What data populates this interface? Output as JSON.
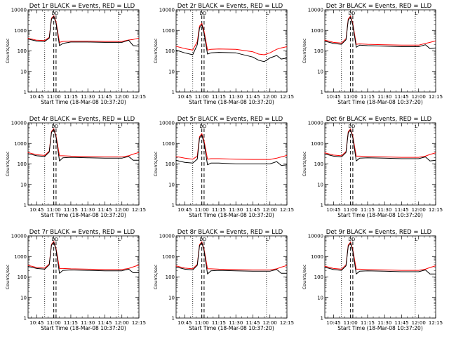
{
  "chart_data": {
    "type": "line",
    "layout": "3x3 grid",
    "y_scale": "log",
    "ylim": [
      1,
      10000
    ],
    "y_ticks": [
      "1",
      "10",
      "100",
      "1000",
      "10000"
    ],
    "x_range": [
      "10:37:20",
      "12:15"
    ],
    "x_ticks": [
      "10:45",
      "11:00",
      "11:15",
      "11:30",
      "11:45",
      "12:00",
      "12:15"
    ],
    "ylabel": "Counts/sec",
    "xlabel": "Start Time (18-Mar-08 10:37:20)",
    "series_colors": {
      "events": "#000000",
      "lld": "#ff0000"
    },
    "marker_labels": [
      "D",
      "D",
      "L"
    ],
    "dotted_lines_at": [
      "10:52",
      "11:57"
    ],
    "dashed_lines_at": [
      "11:00",
      "11:02"
    ],
    "panels": [
      {
        "title": "Det 1r BLACK = Events, RED = LLD",
        "x": [
          "10:37",
          "10:45",
          "10:52",
          "10:56",
          "10:58",
          "11:00",
          "11:02",
          "11:05",
          "11:08",
          "11:15",
          "11:30",
          "11:45",
          "12:00",
          "12:06",
          "12:10",
          "12:15"
        ],
        "series": [
          {
            "name": "BLACK = Events",
            "values": [
              380,
              300,
              290,
              420,
              3500,
              4800,
              2200,
              180,
              230,
              270,
              270,
              260,
              260,
              330,
              180,
              170
            ]
          },
          {
            "name": "RED = LLD",
            "values": [
              420,
              330,
              320,
              460,
              3900,
              5200,
              2600,
              260,
              290,
              300,
              300,
              290,
              290,
              340,
              360,
              420
            ]
          }
        ]
      },
      {
        "title": "Det 2r BLACK = Events, RED = LLD",
        "x": [
          "10:37",
          "10:45",
          "10:52",
          "10:56",
          "10:58",
          "11:00",
          "11:02",
          "11:05",
          "11:08",
          "11:15",
          "11:30",
          "11:45",
          "11:50",
          "11:55",
          "12:00",
          "12:06",
          "12:10",
          "12:15"
        ],
        "series": [
          {
            "name": "BLACK = Events",
            "values": [
              110,
              80,
              65,
              200,
              1300,
              1900,
              700,
              70,
              80,
              85,
              80,
              50,
              35,
              30,
              45,
              60,
              40,
              45
            ]
          },
          {
            "name": "RED = LLD",
            "values": [
              170,
              130,
              110,
              280,
              1600,
              2200,
              900,
              110,
              120,
              125,
              120,
              90,
              70,
              65,
              80,
              120,
              140,
              160
            ]
          }
        ]
      },
      {
        "title": "Det 3r BLACK = Events, RED = LLD",
        "x": [
          "10:37",
          "10:45",
          "10:52",
          "10:56",
          "10:58",
          "11:00",
          "11:02",
          "11:05",
          "11:08",
          "11:15",
          "11:30",
          "11:45",
          "12:00",
          "12:06",
          "12:10",
          "12:15"
        ],
        "series": [
          {
            "name": "BLACK = Events",
            "values": [
              300,
              230,
              210,
              350,
              3200,
              4500,
              1800,
              150,
              190,
              180,
              170,
              160,
              160,
              200,
              130,
              140
            ]
          },
          {
            "name": "RED = LLD",
            "values": [
              340,
              260,
              240,
              390,
              3600,
              5000,
              2100,
              210,
              220,
              210,
              200,
              190,
              190,
              230,
              260,
              310
            ]
          }
        ]
      },
      {
        "title": "Det 4r BLACK = Events, RED = LLD",
        "x": [
          "10:37",
          "10:45",
          "10:52",
          "10:56",
          "10:58",
          "11:00",
          "11:02",
          "11:05",
          "11:08",
          "11:15",
          "11:30",
          "11:45",
          "12:00",
          "12:06",
          "12:10",
          "12:15"
        ],
        "series": [
          {
            "name": "BLACK = Events",
            "values": [
              320,
              250,
              230,
              380,
              3400,
              4800,
              2000,
              140,
              200,
              210,
              200,
              190,
              190,
              230,
              150,
              150
            ]
          },
          {
            "name": "RED = LLD",
            "values": [
              360,
              280,
              260,
              420,
              3800,
              5300,
              2300,
              250,
              250,
              240,
              230,
              220,
              220,
              250,
              300,
              360
            ]
          }
        ]
      },
      {
        "title": "Det 5r BLACK = Events, RED = LLD",
        "x": [
          "10:37",
          "10:45",
          "10:52",
          "10:56",
          "10:58",
          "11:00",
          "11:02",
          "11:05",
          "11:08",
          "11:15",
          "11:30",
          "11:45",
          "12:00",
          "12:06",
          "12:10",
          "12:15"
        ],
        "series": [
          {
            "name": "BLACK = Events",
            "values": [
              150,
              120,
              110,
              170,
              1800,
              2600,
              1000,
              90,
              110,
              110,
              100,
              100,
              100,
              130,
              85,
              90
            ]
          },
          {
            "name": "RED = LLD",
            "values": [
              230,
              190,
              170,
              240,
              2100,
              3000,
              1300,
              170,
              180,
              180,
              170,
              165,
              165,
              190,
              220,
              260
            ]
          }
        ]
      },
      {
        "title": "Det 6r BLACK = Events, RED = LLD",
        "x": [
          "10:37",
          "10:45",
          "10:52",
          "10:56",
          "10:58",
          "11:00",
          "11:02",
          "11:05",
          "11:08",
          "11:15",
          "11:30",
          "11:45",
          "12:00",
          "12:06",
          "12:10",
          "12:15"
        ],
        "series": [
          {
            "name": "BLACK = Events",
            "values": [
              310,
              240,
              220,
              360,
              3300,
              4600,
              1900,
              140,
              190,
              200,
              190,
              180,
              180,
              220,
              140,
              150
            ]
          },
          {
            "name": "RED = LLD",
            "values": [
              350,
              270,
              250,
              400,
              3700,
              5100,
              2200,
              240,
              240,
              230,
              220,
              210,
              210,
              240,
              290,
              350
            ]
          }
        ]
      },
      {
        "title": "Det 7r BLACK = Events, RED = LLD",
        "x": [
          "10:37",
          "10:45",
          "10:52",
          "10:56",
          "10:58",
          "11:00",
          "11:02",
          "11:05",
          "11:08",
          "11:15",
          "11:30",
          "11:45",
          "12:00",
          "12:06",
          "12:10",
          "12:15"
        ],
        "series": [
          {
            "name": "BLACK = Events",
            "values": [
              330,
              260,
              240,
              390,
              3500,
              4900,
              2100,
              150,
              210,
              220,
              210,
              200,
              200,
              240,
              160,
              160
            ]
          },
          {
            "name": "RED = LLD",
            "values": [
              370,
              290,
              270,
              430,
              3900,
              5400,
              2400,
              260,
              260,
              250,
              240,
              230,
              230,
              260,
              310,
              380
            ]
          }
        ]
      },
      {
        "title": "Det 8r BLACK = Events, RED = LLD",
        "x": [
          "10:37",
          "10:45",
          "10:52",
          "10:56",
          "10:58",
          "11:00",
          "11:02",
          "11:05",
          "11:08",
          "11:15",
          "11:30",
          "11:45",
          "12:00",
          "12:06",
          "12:10",
          "12:15"
        ],
        "series": [
          {
            "name": "BLACK = Events",
            "values": [
              310,
              240,
              220,
              370,
              3300,
              4700,
              1900,
              140,
              200,
              210,
              200,
              190,
              190,
              230,
              150,
              150
            ]
          },
          {
            "name": "RED = LLD",
            "values": [
              350,
              270,
              250,
              410,
              3700,
              5200,
              2200,
              250,
              250,
              240,
              230,
              220,
              220,
              250,
              300,
              360
            ]
          }
        ]
      },
      {
        "title": "Det 9r BLACK = Events, RED = LLD",
        "x": [
          "10:37",
          "10:45",
          "10:52",
          "10:56",
          "10:58",
          "11:00",
          "11:02",
          "11:05",
          "11:08",
          "11:15",
          "11:30",
          "11:45",
          "12:00",
          "12:06",
          "12:10",
          "12:15"
        ],
        "series": [
          {
            "name": "BLACK = Events",
            "values": [
              300,
              230,
              210,
              350,
              3200,
              4500,
              1800,
              140,
              190,
              200,
              190,
              180,
              180,
              220,
              140,
              140
            ]
          },
          {
            "name": "RED = LLD",
            "values": [
              340,
              260,
              240,
              390,
              3600,
              5000,
              2100,
              240,
              240,
              230,
              220,
              210,
              210,
              240,
              290,
              350
            ]
          }
        ]
      }
    ]
  }
}
